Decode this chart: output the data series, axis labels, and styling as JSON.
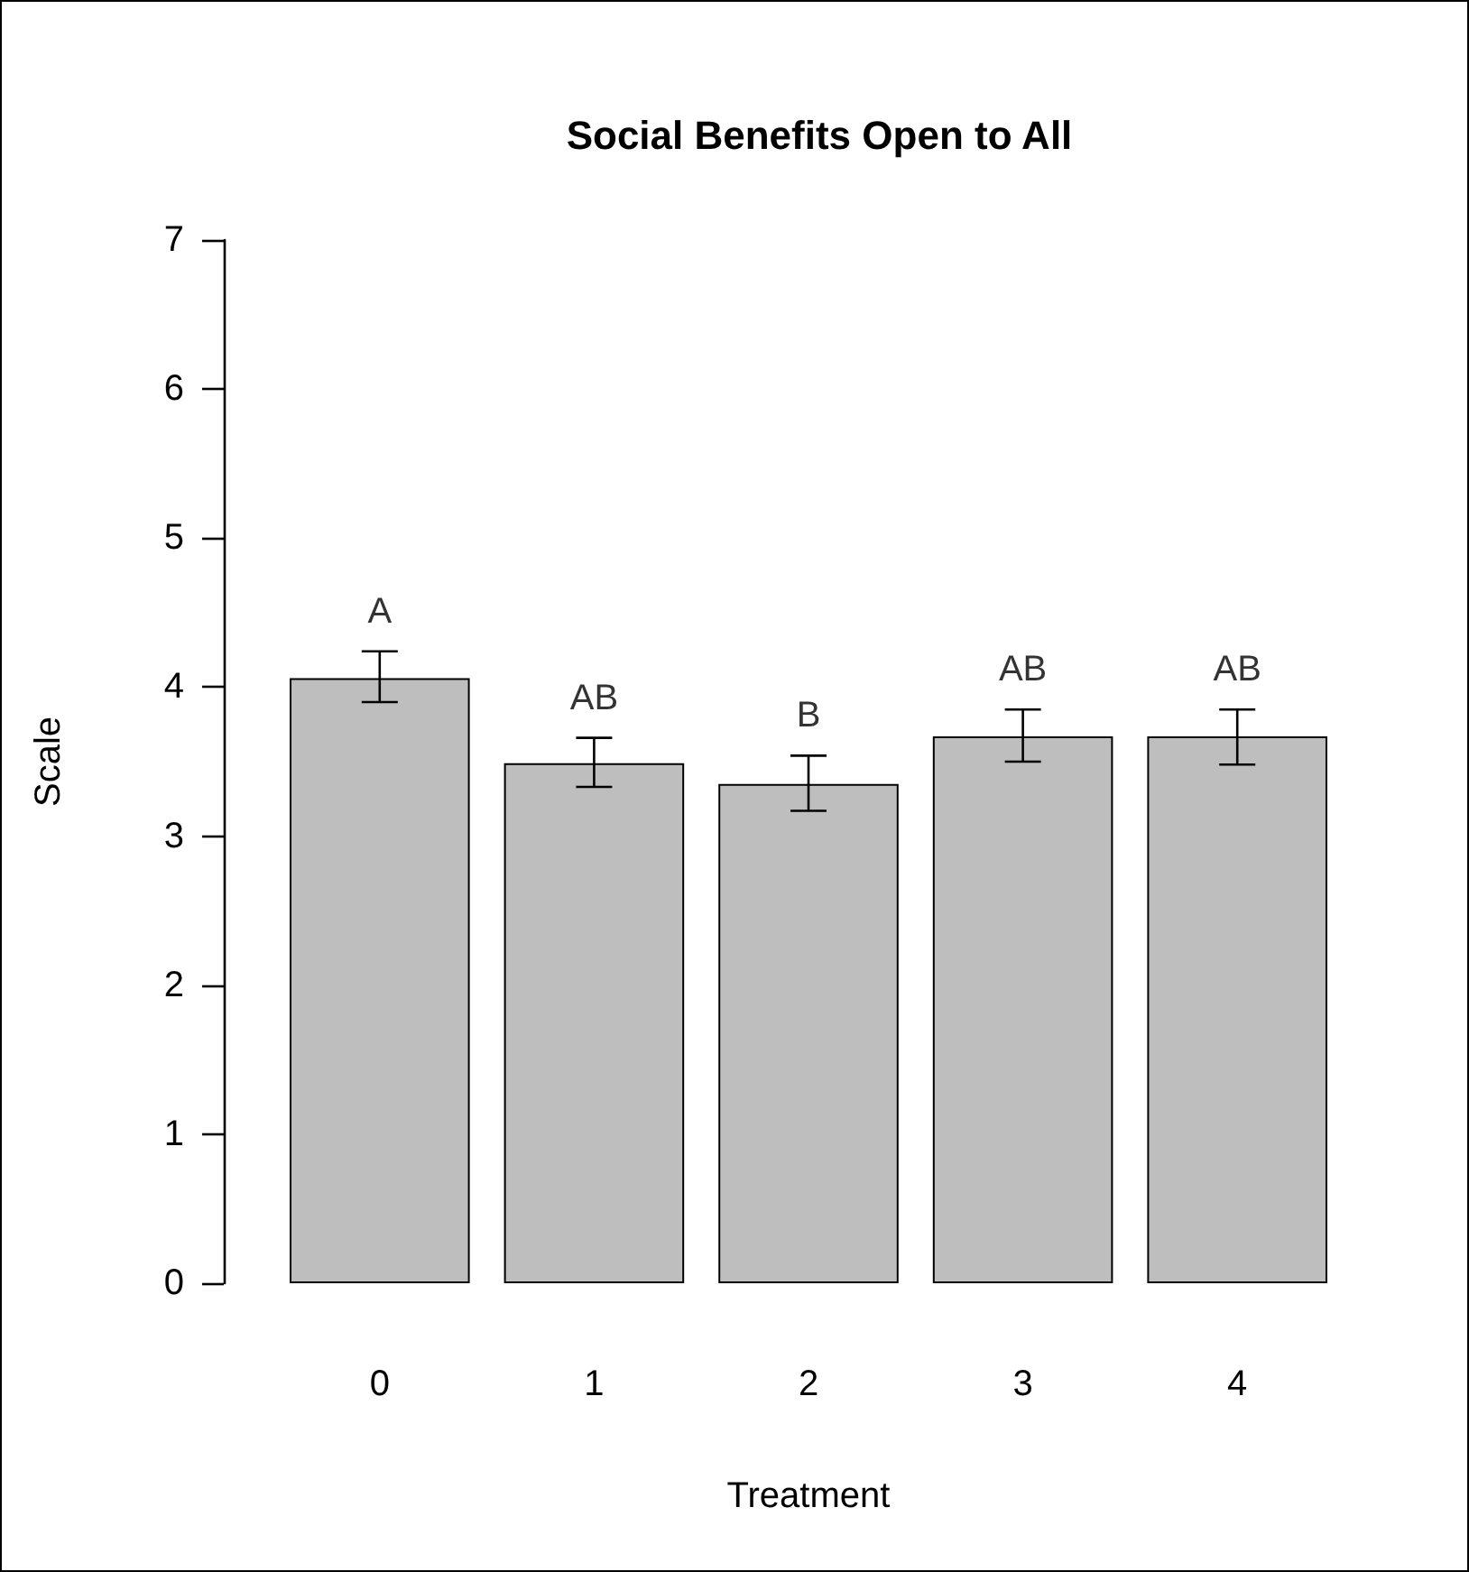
{
  "chart_data": {
    "type": "bar",
    "title": "Social Benefits Open to All",
    "xlabel": "Treatment",
    "ylabel": "Scale",
    "categories": [
      "0",
      "1",
      "2",
      "3",
      "4"
    ],
    "values": [
      4.06,
      3.49,
      3.35,
      3.67,
      3.67
    ],
    "color": "#bebebe",
    "errors": [
      [
        3.9,
        4.24
      ],
      [
        3.33,
        3.66
      ],
      [
        3.17,
        3.54
      ],
      [
        3.5,
        3.85
      ],
      [
        3.48,
        3.85
      ]
    ],
    "ylim": [
      0,
      7
    ],
    "yticks": [
      0,
      1,
      2,
      3,
      4,
      5,
      6,
      7
    ],
    "grid": false,
    "annotations": [
      "A",
      "AB",
      "B",
      "AB",
      "AB"
    ]
  }
}
